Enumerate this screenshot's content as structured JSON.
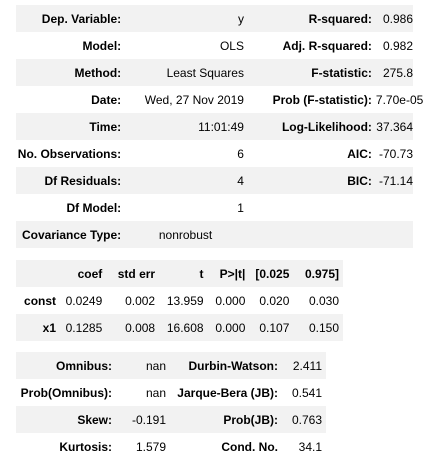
{
  "summary": {
    "rows": [
      [
        "Dep. Variable:",
        "y",
        "R-squared:",
        "0.986"
      ],
      [
        "Model:",
        "OLS",
        "Adj. R-squared:",
        "0.982"
      ],
      [
        "Method:",
        "Least Squares",
        "F-statistic:",
        "275.8"
      ],
      [
        "Date:",
        "Wed, 27 Nov 2019",
        "Prob (F-statistic):",
        "7.70e-05"
      ],
      [
        "Time:",
        "11:01:49",
        "Log-Likelihood:",
        "37.364"
      ],
      [
        "No. Observations:",
        "6",
        "AIC:",
        "-70.73"
      ],
      [
        "Df Residuals:",
        "4",
        "BIC:",
        "-71.14"
      ],
      [
        "Df Model:",
        "1",
        "",
        ""
      ],
      [
        "Covariance Type:",
        "nonrobust",
        "",
        ""
      ]
    ]
  },
  "coefficients": {
    "headers": [
      "",
      "coef",
      "std err",
      "t",
      "P>|t|",
      "[0.025",
      "0.975]"
    ],
    "rows": [
      [
        "const",
        "0.0249",
        "0.002",
        "13.959",
        "0.000",
        "0.020",
        "0.030"
      ],
      [
        "x1",
        "0.1285",
        "0.008",
        "16.608",
        "0.000",
        "0.107",
        "0.150"
      ]
    ]
  },
  "diagnostics": {
    "rows": [
      [
        "Omnibus:",
        "nan",
        "Durbin-Watson:",
        "2.411"
      ],
      [
        "Prob(Omnibus):",
        "nan",
        "Jarque-Bera (JB):",
        "0.541"
      ],
      [
        "Skew:",
        "-0.191",
        "Prob(JB):",
        "0.763"
      ],
      [
        "Kurtosis:",
        "1.579",
        "Cond. No.",
        "34.1"
      ]
    ]
  }
}
